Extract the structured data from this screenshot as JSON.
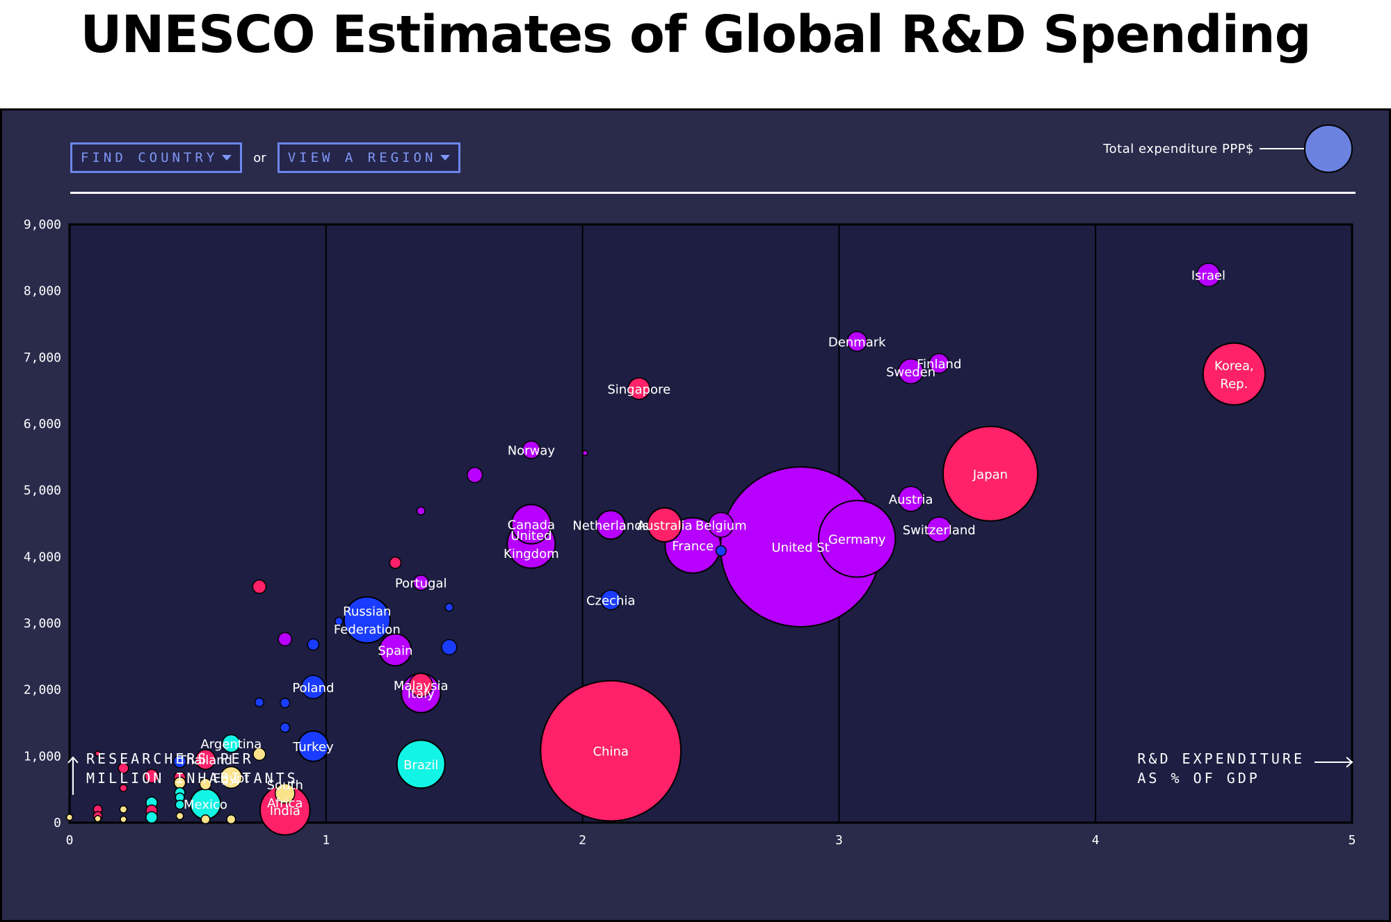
{
  "page": {
    "title": "UNESCO Estimates of Global R&D Spending"
  },
  "controls": {
    "find_country_label": "FIND COUNTRY",
    "or_label": "or",
    "view_region_label": "VIEW A REGION"
  },
  "legend": {
    "size_label": "Total expenditure PPP$",
    "bubble_color": "#6b82e0"
  },
  "colors": {
    "pink": "#ff2169",
    "purple": "#b700ff",
    "blue": "#1a3cff",
    "cyan": "#12f5e6",
    "yellow": "#fbe38b",
    "panel_bg": "#2a2a4b",
    "plot_bg": "#1d1e42",
    "accent": "#6d86ea"
  },
  "chart_data": {
    "type": "scatter",
    "title": "UNESCO Estimates of Global R&D Spending",
    "xlabel_lines": [
      "R&D EXPENDITURE",
      "AS % OF GDP"
    ],
    "ylabel_lines": [
      "RESEARCHERS PER",
      "MILLION INHABITANTS"
    ],
    "xlim": [
      0,
      5
    ],
    "ylim": [
      0,
      9000
    ],
    "x_ticks": [
      0,
      1,
      2,
      3,
      4,
      5
    ],
    "x_tick_labels": [
      "0",
      "1",
      "2",
      "3",
      "4",
      "5"
    ],
    "y_ticks": [
      0,
      1000,
      2000,
      3000,
      4000,
      5000,
      6000,
      7000,
      8000,
      9000
    ],
    "y_tick_labels": [
      "0",
      "1,000",
      "2,000",
      "3,000",
      "4,000",
      "5,000",
      "6,000",
      "7,000",
      "8,000",
      "9,000"
    ],
    "grid": "vertical",
    "size_encoding": "Total expenditure PPP$ (relative bubble size)",
    "color_encoding": "region",
    "points": [
      {
        "label": "United States",
        "display": "United St",
        "x": 2.85,
        "y": 4150,
        "size": 100,
        "color": "purple"
      },
      {
        "label": "China",
        "x": 2.11,
        "y": 1080,
        "size": 77,
        "color": "pink"
      },
      {
        "label": "Japan",
        "x": 3.59,
        "y": 5250,
        "size": 35,
        "color": "pink"
      },
      {
        "label": "Germany",
        "x": 3.07,
        "y": 4270,
        "size": 23,
        "color": "purple"
      },
      {
        "label": "Korea, Rep.",
        "lines": [
          "Korea,",
          "Rep."
        ],
        "x": 4.54,
        "y": 6750,
        "size": 15,
        "color": "pink"
      },
      {
        "label": "France",
        "x": 2.43,
        "y": 4170,
        "size": 12,
        "color": "purple"
      },
      {
        "label": "India",
        "x": 0.84,
        "y": 190,
        "size": 9.7,
        "color": "pink"
      },
      {
        "label": "United Kingdom",
        "lines": [
          "United",
          "Kingdom"
        ],
        "x": 1.8,
        "y": 4190,
        "size": 9,
        "color": "purple"
      },
      {
        "label": "Brazil",
        "x": 1.37,
        "y": 880,
        "size": 9,
        "color": "cyan"
      },
      {
        "label": "Russian Federation",
        "lines": [
          "Russian",
          "Federation"
        ],
        "x": 1.16,
        "y": 3050,
        "size": 8.3,
        "color": "blue"
      },
      {
        "label": "Canada",
        "x": 1.8,
        "y": 4490,
        "size": 6,
        "color": "purple"
      },
      {
        "label": "Italy",
        "x": 1.37,
        "y": 1950,
        "size": 6,
        "color": "purple"
      },
      {
        "label": "Australia",
        "x": 2.32,
        "y": 4480,
        "size": 4.5,
        "color": "pink"
      },
      {
        "label": "Spain",
        "x": 1.27,
        "y": 2600,
        "size": 4,
        "color": "purple"
      },
      {
        "label": "Mexico",
        "x": 0.53,
        "y": 280,
        "size": 3.6,
        "color": "cyan"
      },
      {
        "label": "Turkey",
        "x": 0.95,
        "y": 1150,
        "size": 3.6,
        "color": "blue"
      },
      {
        "label": "Netherlands",
        "x": 2.11,
        "y": 4480,
        "size": 3.2,
        "color": "purple"
      },
      {
        "label": "Belgium",
        "x": 2.54,
        "y": 4480,
        "size": 2.4,
        "color": "purple"
      },
      {
        "label": "Sweden",
        "x": 3.28,
        "y": 6790,
        "size": 2.4,
        "color": "purple"
      },
      {
        "label": "Austria",
        "x": 3.28,
        "y": 4870,
        "size": 2.4,
        "color": "purple"
      },
      {
        "label": "Switzerland",
        "x": 3.39,
        "y": 4410,
        "size": 2.4,
        "color": "purple"
      },
      {
        "label": "Israel",
        "x": 4.44,
        "y": 8240,
        "size": 2.1,
        "color": "purple"
      },
      {
        "label": "Poland",
        "x": 0.95,
        "y": 2040,
        "size": 2.1,
        "color": "blue"
      },
      {
        "label": "Malaysia",
        "x": 1.37,
        "y": 2070,
        "size": 2.1,
        "color": "pink"
      },
      {
        "label": "Singapore",
        "x": 2.22,
        "y": 6530,
        "size": 1.8,
        "color": "pink"
      },
      {
        "label": "Egypt",
        "x": 0.63,
        "y": 680,
        "size": 1.8,
        "color": "yellow"
      },
      {
        "label": "Thailand",
        "x": 0.53,
        "y": 950,
        "size": 1.5,
        "color": "pink"
      },
      {
        "label": "Denmark",
        "x": 3.07,
        "y": 7240,
        "size": 1.5,
        "color": "purple"
      },
      {
        "label": "Finland",
        "x": 3.39,
        "y": 6910,
        "size": 1.5,
        "color": "purple"
      },
      {
        "label": "Czechia",
        "x": 2.11,
        "y": 3350,
        "size": 1.5,
        "color": "blue"
      },
      {
        "label": "South Africa",
        "lines": [
          "South",
          "Africa"
        ],
        "x": 0.84,
        "y": 440,
        "size": 1.5,
        "color": "yellow"
      },
      {
        "label": "Argentina",
        "x": 0.63,
        "y": 1190,
        "size": 1.2,
        "color": "cyan"
      },
      {
        "label": "Norway",
        "x": 1.8,
        "y": 5610,
        "size": 1.2,
        "color": "purple"
      },
      {
        "label": "Portugal",
        "x": 1.37,
        "y": 3610,
        "size": 0.9,
        "color": "purple"
      },
      {
        "label": "",
        "x": 1.58,
        "y": 5230,
        "size": 0.9,
        "color": "purple"
      },
      {
        "label": "",
        "x": 1.48,
        "y": 2640,
        "size": 0.9,
        "color": "blue"
      },
      {
        "label": "",
        "x": 0.74,
        "y": 3550,
        "size": 0.7,
        "color": "pink"
      },
      {
        "label": "",
        "x": 0.84,
        "y": 2760,
        "size": 0.7,
        "color": "purple"
      },
      {
        "label": "",
        "x": 1.27,
        "y": 3910,
        "size": 0.5,
        "color": "pink"
      },
      {
        "label": "",
        "x": 0.95,
        "y": 2680,
        "size": 0.5,
        "color": "blue"
      },
      {
        "label": "",
        "x": 0.74,
        "y": 1030,
        "size": 0.6,
        "color": "yellow"
      },
      {
        "label": "",
        "x": 2.54,
        "y": 4090,
        "size": 0.4,
        "color": "blue"
      },
      {
        "label": "",
        "x": 0.84,
        "y": 1800,
        "size": 0.35,
        "color": "blue"
      },
      {
        "label": "",
        "x": 0.84,
        "y": 1430,
        "size": 0.35,
        "color": "blue"
      },
      {
        "label": "",
        "x": 0.74,
        "y": 1810,
        "size": 0.3,
        "color": "blue"
      },
      {
        "label": "",
        "x": 1.37,
        "y": 4690,
        "size": 0.25,
        "color": "purple"
      },
      {
        "label": "",
        "x": 1.48,
        "y": 3240,
        "size": 0.25,
        "color": "blue"
      },
      {
        "label": "",
        "x": 1.05,
        "y": 3030,
        "size": 0.25,
        "color": "blue"
      },
      {
        "label": "",
        "x": 2.01,
        "y": 5560,
        "size": 0.1,
        "color": "purple"
      },
      {
        "label": "",
        "x": 0.43,
        "y": 920,
        "size": 0.6,
        "color": "blue"
      },
      {
        "label": "",
        "x": 0.53,
        "y": 580,
        "size": 0.5,
        "color": "yellow"
      },
      {
        "label": "",
        "x": 0.53,
        "y": 50,
        "size": 0.3,
        "color": "yellow"
      },
      {
        "label": "",
        "x": 0.63,
        "y": 50,
        "size": 0.3,
        "color": "yellow"
      },
      {
        "label": "",
        "x": 0.43,
        "y": 680,
        "size": 0.5,
        "color": "pink"
      },
      {
        "label": "",
        "x": 0.43,
        "y": 600,
        "size": 0.5,
        "color": "yellow"
      },
      {
        "label": "",
        "x": 0.43,
        "y": 450,
        "size": 0.4,
        "color": "cyan"
      },
      {
        "label": "",
        "x": 0.43,
        "y": 380,
        "size": 0.3,
        "color": "cyan"
      },
      {
        "label": "",
        "x": 0.43,
        "y": 270,
        "size": 0.3,
        "color": "cyan"
      },
      {
        "label": "",
        "x": 0.43,
        "y": 100,
        "size": 0.2,
        "color": "yellow"
      },
      {
        "label": "",
        "x": 0.32,
        "y": 700,
        "size": 0.7,
        "color": "pink"
      },
      {
        "label": "",
        "x": 0.32,
        "y": 300,
        "size": 0.5,
        "color": "cyan"
      },
      {
        "label": "",
        "x": 0.32,
        "y": 180,
        "size": 0.5,
        "color": "pink"
      },
      {
        "label": "",
        "x": 0.32,
        "y": 80,
        "size": 0.5,
        "color": "cyan"
      },
      {
        "label": "",
        "x": 0.21,
        "y": 820,
        "size": 0.4,
        "color": "pink"
      },
      {
        "label": "",
        "x": 0.21,
        "y": 520,
        "size": 0.2,
        "color": "pink"
      },
      {
        "label": "",
        "x": 0.21,
        "y": 200,
        "size": 0.2,
        "color": "yellow"
      },
      {
        "label": "",
        "x": 0.21,
        "y": 50,
        "size": 0.15,
        "color": "yellow"
      },
      {
        "label": "",
        "x": 0.11,
        "y": 1040,
        "size": 0.1,
        "color": "pink"
      },
      {
        "label": "",
        "x": 0.11,
        "y": 200,
        "size": 0.3,
        "color": "pink"
      },
      {
        "label": "",
        "x": 0.11,
        "y": 100,
        "size": 0.3,
        "color": "pink"
      },
      {
        "label": "",
        "x": 0.11,
        "y": 60,
        "size": 0.15,
        "color": "yellow"
      },
      {
        "label": "",
        "x": 0.0,
        "y": 80,
        "size": 0.15,
        "color": "yellow"
      }
    ]
  }
}
